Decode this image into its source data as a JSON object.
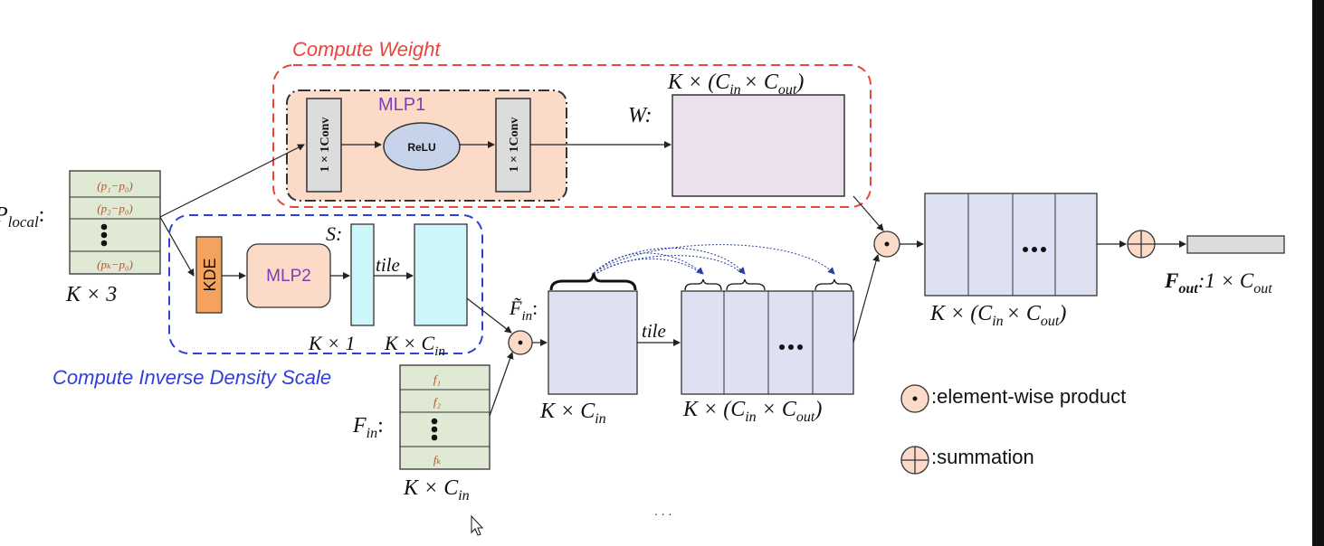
{
  "titles": {
    "compute_weight": "Compute Weight",
    "compute_density": "Compute Inverse Density Scale"
  },
  "input": {
    "label_main": "P",
    "label_sub": "local",
    "label_colon": ":",
    "rows": [
      "(p₁−p₀)",
      "(p₂−p₀)",
      "(pₖ−p₀)"
    ],
    "dim": "K × 3"
  },
  "mlp1": {
    "title": "MLP1",
    "conv_label": "1 × 1Conv",
    "relu_label": "ReLU"
  },
  "weight": {
    "symbol": "W",
    "colon": ":",
    "dim_left": "K × (C",
    "dim_in": "in",
    "dim_mid": "× C",
    "dim_out": "out",
    "dim_right": ")"
  },
  "density": {
    "kde_label": "KDE",
    "mlp2_label": "MLP2",
    "s_label": "S:",
    "tile_label": "tile",
    "dim_s": "K × 1",
    "dim_tile_main": "K × C",
    "dim_tile_sub": "in"
  },
  "features": {
    "label_main": "F",
    "label_sub": "in",
    "colon": ":",
    "rows": [
      "f₁",
      "f₂",
      "fₖ"
    ],
    "dim_main": "K × C",
    "dim_sub": "in"
  },
  "ftilde": {
    "label_main": "F̃",
    "label_sub": "in",
    "colon": ":",
    "dim_main": "K × C",
    "dim_sub": "in",
    "tile_label": "tile",
    "tiled_dim_left": "K × (C",
    "tiled_dim_in": "in",
    "tiled_dim_mid": " × C",
    "tiled_dim_out": "out",
    "tiled_dim_right": ")"
  },
  "product_block": {
    "dim_left": "K × (C",
    "dim_in": "in",
    "dim_mid": "× C",
    "dim_out": "out",
    "dim_right": ")"
  },
  "output": {
    "label_main": "F",
    "label_sub": "out",
    "label_rest": ":1 × C",
    "label_rest_sub": "out"
  },
  "legend": {
    "product_label": ":element-wise product",
    "sum_label": ":summation"
  },
  "footer_dots": ". . .",
  "colors": {
    "red_dash": "#e8463a",
    "blue_dash": "#2f3fd8",
    "mlp1_fill": "#fbdac8",
    "weight_fill": "#ece0ee",
    "grid_green": "#dfe9d4",
    "kde_fill": "#f4a35e",
    "mlp2_fill": "#fbdac8",
    "cyan_fill": "#cdf6fb",
    "block_fill": "#dde1f1",
    "op_fill": "#fbdac8",
    "conv_fill": "#dcdcdc",
    "relu_fill": "#c7d3ea",
    "purple_text": "#7a3fb2",
    "orange_text": "#b5542f"
  }
}
